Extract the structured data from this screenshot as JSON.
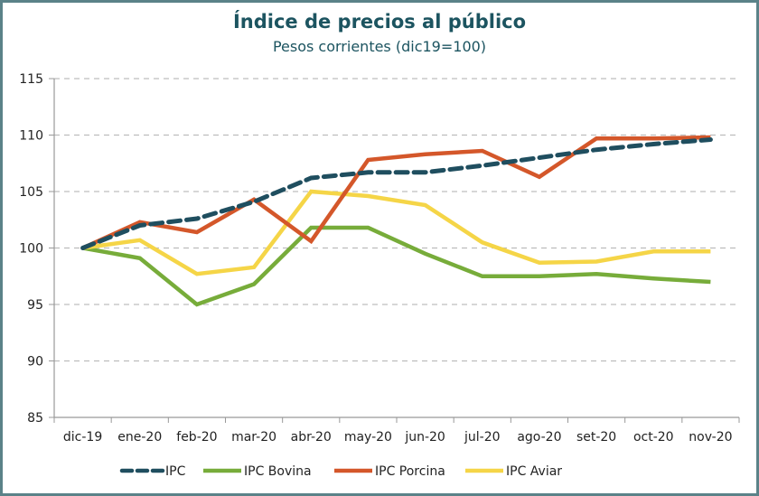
{
  "chart_data": {
    "type": "line",
    "title": "Índice de precios al público",
    "subtitle": "Pesos corrientes (dic19=100)",
    "xlabel": "",
    "ylabel": "",
    "categories": [
      "dic-19",
      "ene-20",
      "feb-20",
      "mar-20",
      "abr-20",
      "may-20",
      "jun-20",
      "jul-20",
      "ago-20",
      "set-20",
      "oct-20",
      "nov-20"
    ],
    "ylim": [
      85,
      115
    ],
    "yticks": [
      85,
      90,
      95,
      100,
      105,
      110,
      115
    ],
    "grid": true,
    "legend_position": "bottom",
    "series": [
      {
        "name": "IPC",
        "color": "#1f4e5f",
        "style": "dashed",
        "values": [
          100.0,
          102.0,
          102.6,
          104.1,
          106.2,
          106.7,
          106.7,
          107.3,
          108.0,
          108.7,
          109.2,
          109.6
        ]
      },
      {
        "name": "IPC Bovina",
        "color": "#77ac3a",
        "style": "solid",
        "values": [
          100.0,
          99.1,
          95.0,
          96.8,
          101.8,
          101.8,
          99.5,
          97.5,
          97.5,
          97.7,
          97.3,
          97.0
        ]
      },
      {
        "name": "IPC Porcina",
        "color": "#d4572a",
        "style": "solid",
        "values": [
          100.0,
          102.3,
          101.4,
          104.3,
          100.6,
          107.8,
          108.3,
          108.6,
          106.3,
          109.7,
          109.7,
          109.8
        ]
      },
      {
        "name": "IPC Aviar",
        "color": "#f5d547",
        "style": "solid",
        "values": [
          100.0,
          100.7,
          97.7,
          98.3,
          105.0,
          104.6,
          103.8,
          100.5,
          98.7,
          98.8,
          99.7,
          99.7
        ]
      }
    ]
  }
}
